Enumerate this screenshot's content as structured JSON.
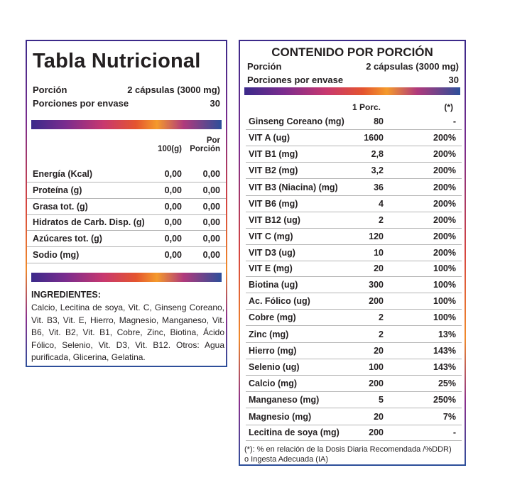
{
  "left": {
    "title": "Tabla Nutricional",
    "portion_label": "Porción",
    "portion_value": "2 cápsulas (3000 mg)",
    "servings_label": "Porciones por envase",
    "servings_value": "30",
    "col1_header": "100(g)",
    "col2_header_line1": "Por",
    "col2_header_line2": "Porción",
    "rows": [
      {
        "label": "Energía (Kcal)",
        "v1": "0,00",
        "v2": "0,00"
      },
      {
        "label": "Proteína (g)",
        "v1": "0,00",
        "v2": "0,00"
      },
      {
        "label": "Grasa tot. (g)",
        "v1": "0,00",
        "v2": "0,00"
      },
      {
        "label": "Hidratos de Carb. Disp. (g)",
        "v1": "0,00",
        "v2": "0,00"
      },
      {
        "label": "Azúcares tot. (g)",
        "v1": "0,00",
        "v2": "0,00"
      },
      {
        "label": "Sodio (mg)",
        "v1": "0,00",
        "v2": "0,00"
      }
    ],
    "ingredients_title": "INGREDIENTES:",
    "ingredients_text": "Calcio, Lecitina de soya, Vit. C, Ginseng Coreano, Vit. B3, Vit. E, Hierro, Magnesio, Manganeso, Vit. B6, Vit. B2, Vit. B1, Cobre, Zinc, Biotina, Ácido Fólico, Selenio, Vit. D3, Vit. B12. Otros: Agua purificada, Glicerina, Gelatina."
  },
  "right": {
    "title": "CONTENIDO POR PORCIÓN",
    "portion_label": "Porción",
    "portion_value": "2 cápsulas (3000 mg)",
    "servings_label": "Porciones por envase",
    "servings_value": "30",
    "col1_header": "1 Porc.",
    "col2_header": "(*)",
    "rows": [
      {
        "label": "Ginseng Coreano (mg)",
        "v1": "80",
        "v2": "-"
      },
      {
        "label": "VIT A (ug)",
        "v1": "1600",
        "v2": "200%"
      },
      {
        "label": "VIT B1 (mg)",
        "v1": "2,8",
        "v2": "200%"
      },
      {
        "label": "VIT B2 (mg)",
        "v1": "3,2",
        "v2": "200%"
      },
      {
        "label": "VIT B3 (Niacina) (mg)",
        "v1": "36",
        "v2": "200%"
      },
      {
        "label": "VIT B6 (mg)",
        "v1": "4",
        "v2": "200%"
      },
      {
        "label": "VIT B12 (ug)",
        "v1": "2",
        "v2": "200%"
      },
      {
        "label": "VIT C (mg)",
        "v1": "120",
        "v2": "200%"
      },
      {
        "label": "VIT D3 (ug)",
        "v1": "10",
        "v2": "200%"
      },
      {
        "label": "VIT E (mg)",
        "v1": "20",
        "v2": "100%"
      },
      {
        "label": "Biotina (ug)",
        "v1": "300",
        "v2": "100%"
      },
      {
        "label": "Ac. Fólico (ug)",
        "v1": "200",
        "v2": "100%"
      },
      {
        "label": "Cobre (mg)",
        "v1": "2",
        "v2": "100%"
      },
      {
        "label": "Zinc (mg)",
        "v1": "2",
        "v2": "13%"
      },
      {
        "label": "Hierro (mg)",
        "v1": "20",
        "v2": "143%"
      },
      {
        "label": "Selenio (ug)",
        "v1": "100",
        "v2": "143%"
      },
      {
        "label": "Calcio (mg)",
        "v1": "200",
        "v2": "25%"
      },
      {
        "label": "Manganeso (mg)",
        "v1": "5",
        "v2": "250%"
      },
      {
        "label": "Magnesio (mg)",
        "v1": "20",
        "v2": "7%"
      },
      {
        "label": "Lecitina de soya (mg)",
        "v1": "200",
        "v2": "-"
      }
    ],
    "footnote_line1": "(*): % en relación de la Dosis Diaria Recomendada /%DDR)",
    "footnote_line2": "o Ingesta Adecuada (IA)"
  }
}
